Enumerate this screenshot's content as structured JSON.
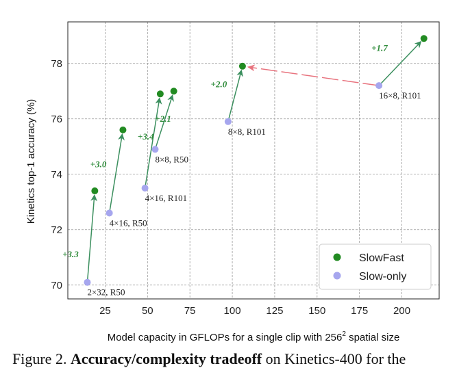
{
  "chart_data": {
    "type": "scatter",
    "xlabel_main": "Model capacity in GFLOPs for a single clip with 256",
    "xlabel_sup": "2",
    "xlabel_tail": " spatial size",
    "ylabel": "Kinetics top-1 accuracy (%)",
    "xlim": [
      3,
      222
    ],
    "ylim": [
      69.5,
      79.5
    ],
    "x_ticks": [
      25,
      50,
      75,
      100,
      125,
      150,
      175,
      200
    ],
    "y_ticks": [
      70,
      72,
      74,
      76,
      78
    ],
    "grid": true,
    "legend_position": "lower-right",
    "colors": {
      "slowfast": "#228b22",
      "slow_only": "#a6a6ee",
      "arrow": "#3b8f5e",
      "dashed_arrow": "#e8737e"
    },
    "series": [
      {
        "name": "SlowFast",
        "points": [
          {
            "x": 18.9,
            "y": 73.4
          },
          {
            "x": 35.5,
            "y": 75.6
          },
          {
            "x": 57.5,
            "y": 76.9
          },
          {
            "x": 65.5,
            "y": 77.0
          },
          {
            "x": 106.0,
            "y": 77.9
          },
          {
            "x": 213.0,
            "y": 78.9
          }
        ]
      },
      {
        "name": "Slow-only",
        "points": [
          {
            "x": 14.5,
            "y": 70.1,
            "label": "2×32, R50"
          },
          {
            "x": 27.5,
            "y": 72.6,
            "label": "4×16, R50"
          },
          {
            "x": 48.5,
            "y": 73.5,
            "label": "4×16, R101"
          },
          {
            "x": 54.5,
            "y": 74.9,
            "label": "8×8, R50"
          },
          {
            "x": 97.5,
            "y": 75.9,
            "label": "8×8, R101"
          },
          {
            "x": 186.5,
            "y": 77.2,
            "label": "16×8, R101"
          }
        ]
      }
    ],
    "arrows": [
      {
        "from": [
          14.5,
          70.1
        ],
        "to": [
          18.9,
          73.4
        ],
        "gain": "+3.3"
      },
      {
        "from": [
          27.5,
          72.6
        ],
        "to": [
          35.5,
          75.6
        ],
        "gain": "+3.0"
      },
      {
        "from": [
          48.5,
          73.5
        ],
        "to": [
          57.5,
          76.9
        ],
        "gain": "+3.4"
      },
      {
        "from": [
          54.5,
          74.9
        ],
        "to": [
          65.5,
          77.0
        ],
        "gain": "+2.1"
      },
      {
        "from": [
          97.5,
          75.9
        ],
        "to": [
          106.0,
          77.9
        ],
        "gain": "+2.0"
      },
      {
        "from": [
          186.5,
          77.2
        ],
        "to": [
          213.0,
          78.9
        ],
        "gain": "+1.7"
      }
    ],
    "dashed_arrow": {
      "from": [
        186.5,
        77.2
      ],
      "to": [
        106.0,
        77.9
      ]
    }
  },
  "caption": {
    "prefix": "Figure 2.",
    "bold": "Accuracy/complexity tradeoff",
    "suffix": " on Kinetics-400 for the"
  }
}
